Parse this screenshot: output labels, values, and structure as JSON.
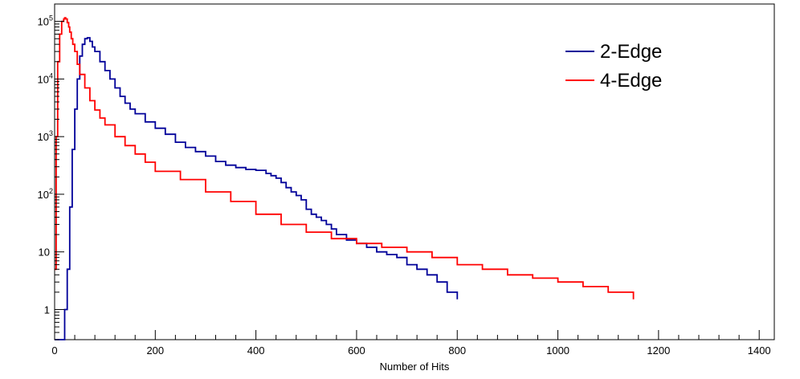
{
  "chart_data": {
    "type": "line",
    "title": "",
    "xlabel": "Number of Hits",
    "ylabel": "",
    "xlim": [
      0,
      1430
    ],
    "ylim": [
      0.3,
      200000
    ],
    "yscale": "log",
    "grid": false,
    "legend_position": "top-right",
    "x_ticks": [
      {
        "value": 0,
        "label": "0"
      },
      {
        "value": 200,
        "label": "200"
      },
      {
        "value": 400,
        "label": "400"
      },
      {
        "value": 600,
        "label": "600"
      },
      {
        "value": 800,
        "label": "800"
      },
      {
        "value": 1000,
        "label": "1000"
      },
      {
        "value": 1200,
        "label": "1200"
      },
      {
        "value": 1400,
        "label": "1400"
      }
    ],
    "y_ticks": [
      {
        "value": 1,
        "base": "1",
        "exp": ""
      },
      {
        "value": 10,
        "base": "10",
        "exp": ""
      },
      {
        "value": 100,
        "base": "10",
        "exp": "2"
      },
      {
        "value": 1000,
        "base": "10",
        "exp": "3"
      },
      {
        "value": 10000,
        "base": "10",
        "exp": "4"
      },
      {
        "value": 100000,
        "base": "10",
        "exp": "5"
      }
    ],
    "series": [
      {
        "name": "2-Edge",
        "color": "#000099",
        "x": [
          0,
          15,
          20,
          25,
          30,
          35,
          40,
          45,
          50,
          55,
          60,
          65,
          70,
          75,
          80,
          90,
          100,
          110,
          120,
          130,
          140,
          150,
          160,
          180,
          200,
          220,
          240,
          260,
          280,
          300,
          320,
          340,
          360,
          380,
          400,
          420,
          430,
          440,
          450,
          460,
          470,
          480,
          490,
          500,
          510,
          520,
          530,
          540,
          550,
          560,
          580,
          600,
          620,
          640,
          660,
          680,
          700,
          720,
          740,
          760,
          780,
          800
        ],
        "y": [
          0.3,
          0.3,
          1,
          5,
          60,
          600,
          3000,
          10000,
          25000,
          40000,
          50000,
          52000,
          45000,
          36000,
          30000,
          20000,
          14000,
          10000,
          7000,
          5000,
          3800,
          3000,
          2500,
          1800,
          1400,
          1100,
          800,
          650,
          550,
          460,
          370,
          320,
          290,
          270,
          260,
          230,
          210,
          190,
          160,
          130,
          110,
          95,
          80,
          55,
          45,
          40,
          35,
          30,
          25,
          20,
          16,
          14,
          12,
          10,
          9,
          8,
          6,
          5,
          4,
          3,
          2,
          1.5
        ]
      },
      {
        "name": "4-Edge",
        "color": "#ff0000",
        "x": [
          0,
          3,
          6,
          10,
          14,
          18,
          20,
          22,
          25,
          28,
          30,
          33,
          36,
          40,
          45,
          50,
          60,
          70,
          80,
          90,
          100,
          120,
          140,
          160,
          180,
          200,
          250,
          300,
          350,
          400,
          450,
          500,
          550,
          600,
          650,
          700,
          750,
          800,
          850,
          900,
          950,
          1000,
          1050,
          1100,
          1150
        ],
        "y": [
          5,
          1000,
          20000,
          60000,
          100000,
          110000,
          115000,
          110000,
          95000,
          80000,
          65000,
          50000,
          40000,
          30000,
          18000,
          12000,
          7000,
          4200,
          2900,
          2100,
          1600,
          1000,
          700,
          500,
          360,
          250,
          180,
          110,
          75,
          45,
          30,
          22,
          17,
          14,
          12,
          10,
          8,
          6,
          5,
          4,
          3.5,
          3,
          2.5,
          2,
          1.5
        ]
      }
    ]
  }
}
